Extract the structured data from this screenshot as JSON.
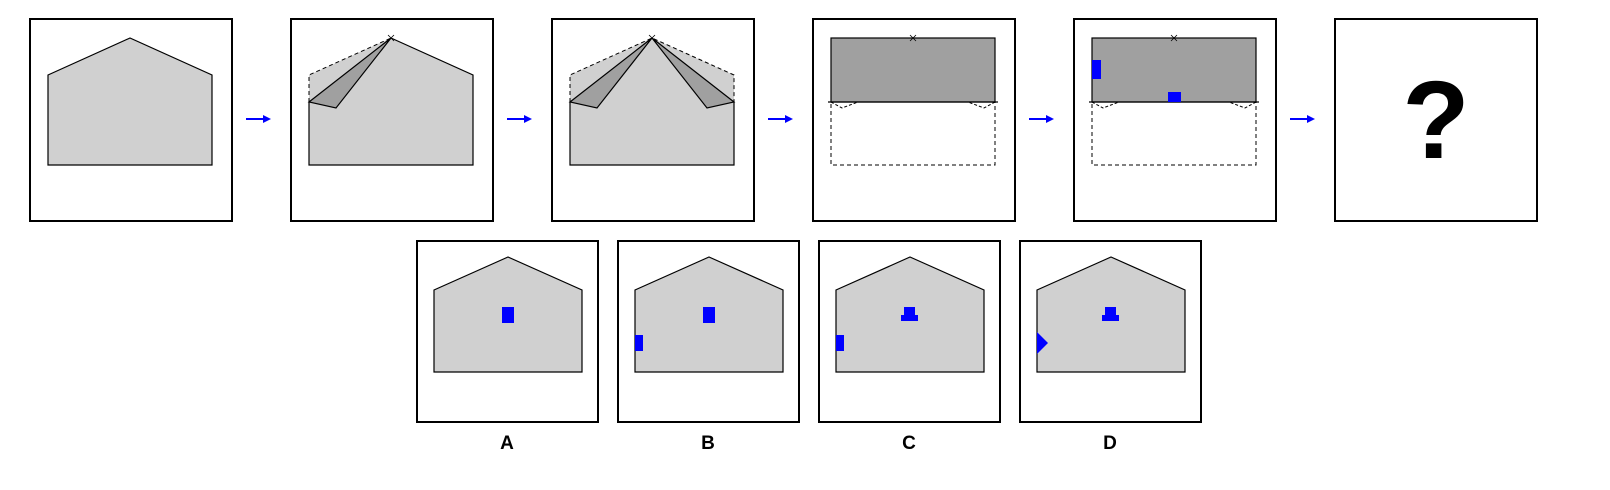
{
  "colors": {
    "light_fill": "#d0d0d0",
    "dark_fill": "#a0a0a0",
    "mark": "#0000ff",
    "arrow": "#0000ff",
    "outline": "#000000"
  },
  "sequence": {
    "steps": 6,
    "question_mark": "?"
  },
  "options": [
    {
      "label": "A"
    },
    {
      "label": "B"
    },
    {
      "label": "C"
    },
    {
      "label": "D"
    }
  ]
}
